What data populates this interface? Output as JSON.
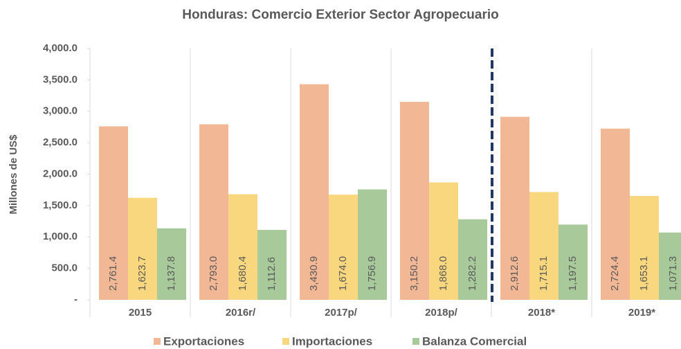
{
  "chart_data": {
    "type": "bar",
    "title": "Honduras: Comercio Exterior Sector Agropecuario",
    "ylabel": "Millones de US$",
    "categories": [
      "2015",
      "2016r/",
      "2017p/",
      "2018p/",
      "2018*",
      "2019*"
    ],
    "series": [
      {
        "name": "Exportaciones",
        "color": "#f2b896",
        "values": [
          2761.4,
          2793.0,
          3430.9,
          3150.2,
          2912.6,
          2724.4
        ],
        "value_labels": [
          "2,761.4",
          "2,793.0",
          "3,430.9",
          "3,150.2",
          "2,912.6",
          "2,724.4"
        ]
      },
      {
        "name": "Importaciones",
        "color": "#f9d77e",
        "values": [
          1623.7,
          1680.4,
          1674.0,
          1868.0,
          1715.1,
          1653.1
        ],
        "value_labels": [
          "1,623.7",
          "1,680.4",
          "1,674.0",
          "1,868.0",
          "1,715.1",
          "1,653.1"
        ]
      },
      {
        "name": "Balanza Comercial",
        "color": "#a8c99a",
        "values": [
          1137.8,
          1112.6,
          1756.9,
          1282.2,
          1197.5,
          1071.3
        ],
        "value_labels": [
          "1,137.8",
          "1,112.6",
          "1,756.9",
          "1,282.2",
          "1,197.5",
          "1,071.3"
        ]
      }
    ],
    "ylim": [
      0,
      4000
    ],
    "yticks": [
      {
        "value": 0,
        "label": "-"
      },
      {
        "value": 500,
        "label": "500.0"
      },
      {
        "value": 1000,
        "label": "1,000.0"
      },
      {
        "value": 1500,
        "label": "1,500.0"
      },
      {
        "value": 2000,
        "label": "2,000.0"
      },
      {
        "value": 2500,
        "label": "2,500.0"
      },
      {
        "value": 3000,
        "label": "3,000.0"
      },
      {
        "value": 3500,
        "label": "3,500.0"
      },
      {
        "value": 4000,
        "label": "4,000.0"
      }
    ],
    "grid": false,
    "legend": "bottom"
  }
}
